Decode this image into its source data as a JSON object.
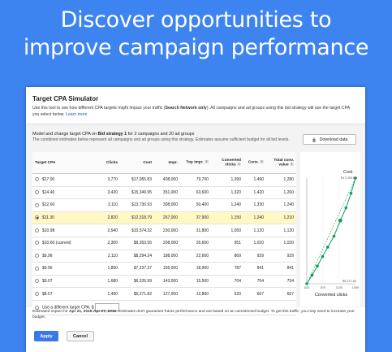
{
  "headline": {
    "line1": "Discover opportunities to",
    "line2": "improve campaign performance"
  },
  "panel": {
    "title": "Target CPA Simulator",
    "desc_pre": "Use this tool to see how different CPA targets might impact your traffic (",
    "desc_bold": "Search Network only",
    "desc_post": "). All campaigns and ad groups using this bid strategy will use the target CPA you select below.",
    "learn_more": "Learn more",
    "model_pre": "Model and change target CPA on ",
    "model_bold": "Bid strategy 1",
    "model_post": " for 2 campaigns and 20 ad groups",
    "combined_note": "The combined estimates below represent all campaigns and ad groups using this strategy. Estimates assume sufficient budget for all bid levels.",
    "download_label": "Download data"
  },
  "table": {
    "headers": [
      "Target CPA",
      "Clicks",
      "Cost",
      "Impr.",
      "Top impr.",
      "Converted clicks",
      "Conv.",
      "Total conv. value"
    ],
    "rows": [
      {
        "cpa": "$17.90",
        "clicks": "3,770",
        "cost": "$17,055.83",
        "impr": "408,000",
        "top": "79,700",
        "conv_clicks": "1,390",
        "conv": "1,490",
        "value": "1,280",
        "selected": false
      },
      {
        "cpa": "$14.40",
        "clicks": "3,430",
        "cost": "$15,349.95",
        "impr": "351,000",
        "top": "63,600",
        "conv_clicks": "1,320",
        "conv": "1,420",
        "value": "1,260",
        "selected": false
      },
      {
        "cpa": "$12.60",
        "clicks": "3,110",
        "cost": "$13,730.93",
        "impr": "308,000",
        "top": "50,400",
        "conv_clicks": "1,240",
        "conv": "1,330",
        "value": "1,240",
        "selected": false
      },
      {
        "cpa": "$11.30",
        "clicks": "2,820",
        "cost": "$12,318.79",
        "impr": "267,000",
        "top": "37,900",
        "conv_clicks": "1,150",
        "conv": "1,240",
        "value": "1,210",
        "selected": true
      },
      {
        "cpa": "$10.98",
        "clicks": "2,540",
        "cost": "$10,574.32",
        "impr": "230,000",
        "top": "31,800",
        "conv_clicks": "1,050",
        "conv": "1,120",
        "value": "1,120",
        "selected": false
      },
      {
        "cpa": "$10.60 (current)",
        "clicks": "2,300",
        "cost": "$9,353.55",
        "impr": "208,000",
        "top": "26,600",
        "conv_clicks": "951",
        "conv": "1,020",
        "value": "1,020",
        "selected": false
      },
      {
        "cpa": "$9.96",
        "clicks": "2,110",
        "cost": "$8,294.24",
        "impr": "188,000",
        "top": "22,600",
        "conv_clicks": "869",
        "conv": "929",
        "value": "929",
        "selected": false
      },
      {
        "cpa": "$9.56",
        "clicks": "1,890",
        "cost": "$7,237.37",
        "impr": "165,000",
        "top": "18,900",
        "conv_clicks": "787",
        "conv": "841",
        "value": "841",
        "selected": false
      },
      {
        "cpa": "$9.07",
        "clicks": "1,680",
        "cost": "$6,226.99",
        "impr": "143,000",
        "top": "15,500",
        "conv_clicks": "704",
        "conv": "754",
        "value": "754",
        "selected": false
      },
      {
        "cpa": "$8.57",
        "clicks": "1,490",
        "cost": "$5,271.82",
        "impr": "127,000",
        "top": "12,800",
        "conv_clicks": "620",
        "conv": "667",
        "value": "667",
        "selected": false
      }
    ],
    "custom_label": "Use a different target CPA:",
    "currency": "$"
  },
  "chart_data": {
    "type": "line",
    "ylabel": "Cost",
    "xlabel": "Converted clicks",
    "x_ticks": [
      "620",
      "870",
      "1130",
      "1390"
    ],
    "y_ticks": [
      "$17,055.83",
      "$5,271.82"
    ],
    "xlim": [
      620,
      1390
    ],
    "ylim": [
      5271.82,
      17055.83
    ],
    "series": [
      {
        "x": [
          620,
          704,
          787,
          869,
          951,
          1050,
          1150,
          1240,
          1320,
          1390
        ],
        "y": [
          5271.82,
          6226.99,
          7237.37,
          8294.24,
          9353.55,
          10574.32,
          12318.79,
          13730.93,
          15349.95,
          17055.83
        ]
      }
    ],
    "colors": {
      "line": "#0f9d58",
      "selected": "#0f9d58"
    },
    "selected_index": 6
  },
  "footer": {
    "note_pre": "Estimated impact for ",
    "note_bold": "Apr 21, 2015-Apr 27, 2015",
    "note_post": ". Estimates don't guarantee future performance and are based on an unrestricted budget. To get this traffic, you may need to increase your budget.",
    "apply_label": "Apply",
    "cancel_label": "Cancel"
  }
}
